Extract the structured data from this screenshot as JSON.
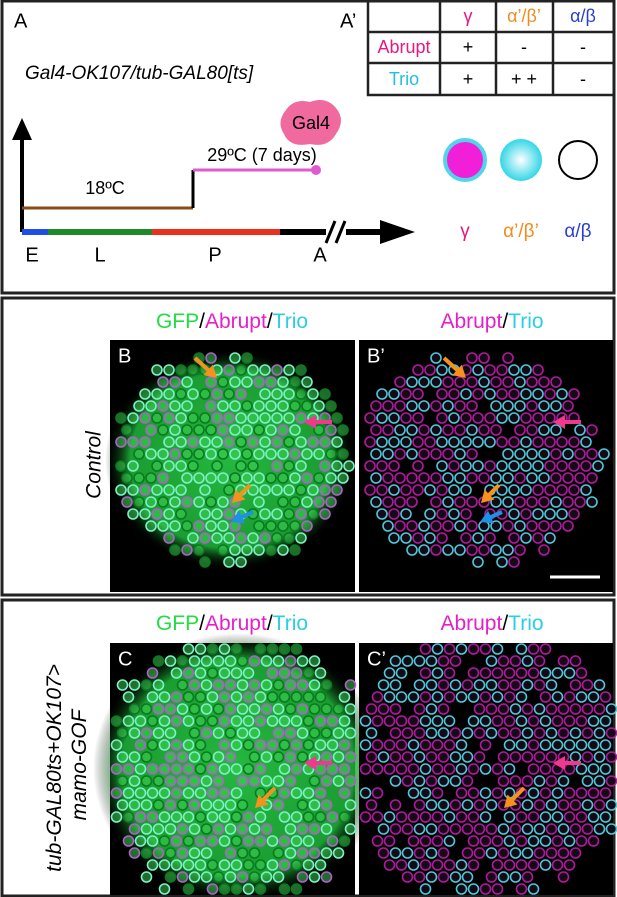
{
  "panel_a": {
    "label": "A",
    "genotype": "Gal4-OK107/tub-GAL80[ts]",
    "table": {
      "label": "A’",
      "header": [
        "γ",
        "α’/β’",
        "α/β"
      ],
      "rows": [
        [
          "Abrupt",
          "+",
          "-",
          "-"
        ],
        [
          "Trio",
          "+",
          "+ +",
          "-"
        ]
      ]
    },
    "timeline": {
      "temp_1": "18ºC",
      "temp_2": "29ºC (7 days)",
      "driver": "Gal4",
      "stages": [
        "E",
        "L",
        "P",
        "A"
      ]
    },
    "cell_types": [
      "γ",
      "α’/β’",
      "α/β"
    ]
  },
  "panel_b": {
    "label": "B",
    "label_2": "B’",
    "merge_title": [
      "GFP",
      "/",
      "Abrupt",
      "/",
      "Trio"
    ],
    "title_2": [
      "Abrupt",
      "/",
      "Trio"
    ],
    "condition": "Control"
  },
  "panel_c": {
    "label": "C",
    "label_2": "C’",
    "merge_title": [
      "GFP",
      "/",
      "Abrupt",
      "/",
      "Trio"
    ],
    "title_2": [
      "Abrupt",
      "/",
      "Trio"
    ],
    "condition": [
      "tub-GAL80ts+OK107>",
      "mamo-GOF"
    ]
  }
}
